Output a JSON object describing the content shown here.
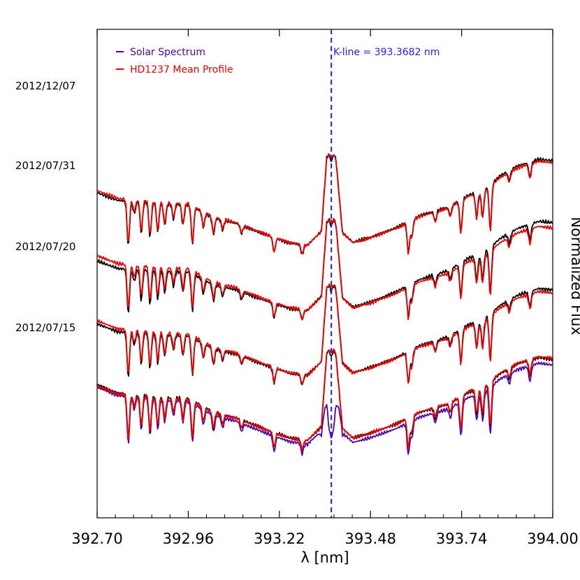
{
  "chart_data": {
    "type": "line",
    "xlabel": "λ [nm]",
    "ylabel": "Normalized Flux",
    "xlim": [
      392.7,
      394.0
    ],
    "x_ticks": [
      "392.70",
      "392.96",
      "393.22",
      "393.48",
      "393.74",
      "394.00"
    ],
    "ylim": [
      0,
      6
    ],
    "grid": false,
    "legend_placement": "top-left",
    "legend": [
      {
        "name": "Solar Spectrum",
        "color": "#5500aa"
      },
      {
        "name": "HD1237 Mean Profile",
        "color": "#ee0000"
      }
    ],
    "vline": {
      "x": 393.3682,
      "label": "K-line = 393.3682 nm",
      "color": "#1f1fff"
    },
    "observation_dates": [
      "2012/12/07",
      "2012/07/31",
      "2012/07/20",
      "2012/07/15"
    ],
    "epoch_y_offsets": [
      3.0,
      2.2,
      1.4,
      0.6
    ],
    "continuum": [
      [
        392.7,
        1.02
      ],
      [
        392.76,
        0.92
      ],
      [
        392.83,
        0.9
      ],
      [
        392.9,
        0.87
      ],
      [
        392.96,
        0.86
      ],
      [
        393.03,
        0.7
      ],
      [
        393.1,
        0.62
      ],
      [
        393.17,
        0.5
      ],
      [
        393.25,
        0.38
      ],
      [
        393.3,
        0.35
      ],
      [
        393.34,
        0.52
      ],
      [
        393.355,
        1.42
      ],
      [
        393.368,
        1.5
      ],
      [
        393.381,
        1.42
      ],
      [
        393.4,
        0.5
      ],
      [
        393.43,
        0.38
      ],
      [
        393.48,
        0.44
      ],
      [
        393.55,
        0.55
      ],
      [
        393.62,
        0.7
      ],
      [
        393.7,
        0.8
      ],
      [
        393.76,
        0.95
      ],
      [
        393.8,
        1.0
      ],
      [
        393.85,
        1.18
      ],
      [
        393.9,
        1.3
      ],
      [
        393.96,
        1.38
      ],
      [
        394.0,
        1.36
      ]
    ],
    "absorption_lines": [
      [
        392.789,
        0.55
      ],
      [
        392.806,
        0.15
      ],
      [
        392.826,
        0.38
      ],
      [
        392.851,
        0.42
      ],
      [
        392.873,
        0.35
      ],
      [
        392.893,
        0.26
      ],
      [
        392.918,
        0.18
      ],
      [
        392.945,
        0.25
      ],
      [
        392.972,
        0.45
      ],
      [
        393.003,
        0.18
      ],
      [
        393.032,
        0.2
      ],
      [
        393.058,
        0.12
      ],
      [
        393.112,
        0.1
      ],
      [
        393.205,
        0.18
      ],
      [
        393.285,
        0.12
      ],
      [
        393.588,
        0.38
      ],
      [
        393.598,
        0.2
      ],
      [
        393.665,
        0.12
      ],
      [
        393.708,
        0.12
      ],
      [
        393.738,
        0.4
      ],
      [
        393.783,
        0.3
      ],
      [
        393.8,
        0.32
      ],
      [
        393.822,
        0.55
      ],
      [
        393.876,
        0.12
      ],
      [
        393.935,
        0.18
      ]
    ]
  }
}
